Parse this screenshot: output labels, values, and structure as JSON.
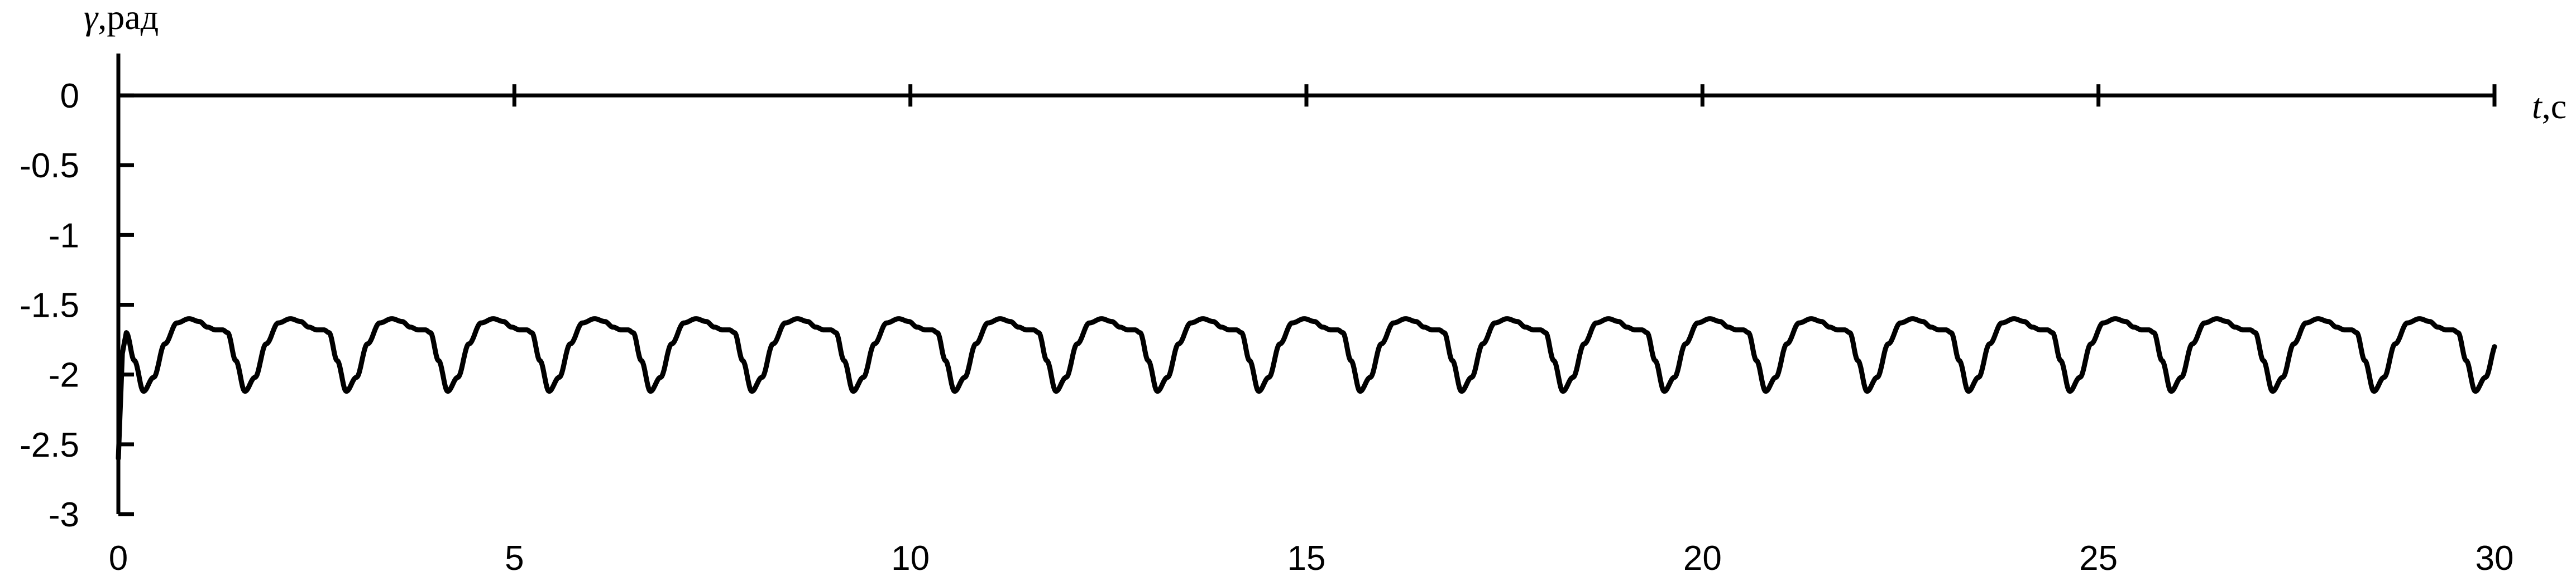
{
  "chart_data": {
    "type": "line",
    "title": "",
    "xlabel_symbol": "t",
    "xlabel_unit": ",c",
    "ylabel_symbol": "γ",
    "ylabel_unit": ",рад",
    "xlim": [
      0,
      30
    ],
    "ylim": [
      -3,
      0.3
    ],
    "x_ticks": [
      0,
      5,
      10,
      15,
      20,
      25,
      30
    ],
    "x_tick_labels": [
      "0",
      "5",
      "10",
      "15",
      "20",
      "25",
      "30"
    ],
    "y_ticks": [
      0,
      -0.5,
      -1,
      -1.5,
      -2,
      -2.5,
      -3
    ],
    "y_tick_labels": [
      "0",
      "-0.5",
      "-1",
      "-1.5",
      "-2",
      "-2.5",
      "-3"
    ],
    "grid": false,
    "line_color": "#000000",
    "series": [
      {
        "period": 1.28,
        "x": [
          0,
          0.05,
          0.1,
          0.2,
          0.3,
          0.4,
          0.5,
          0.62,
          0.74,
          0.9,
          1.02,
          1.14,
          1.28,
          1.36,
          1.48,
          1.58
        ],
        "y": [
          -2.6,
          -1.85,
          -1.7,
          -1.9,
          -2.12,
          -2.05,
          -1.8,
          -1.62,
          -1.6,
          -1.62,
          -1.68,
          -1.68,
          -1.7,
          -1.9,
          -2.12,
          -1.97
        ]
      }
    ],
    "waveform_keypoints_per_period": {
      "phase": [
        0.0,
        0.08,
        0.17,
        0.27,
        0.38,
        0.5,
        0.62,
        0.72,
        0.8,
        0.88,
        0.95,
        1.0
      ],
      "y": [
        -1.7,
        -1.9,
        -2.12,
        -2.02,
        -1.78,
        -1.63,
        -1.6,
        -1.62,
        -1.66,
        -1.68,
        -1.68,
        -1.7
      ]
    }
  }
}
